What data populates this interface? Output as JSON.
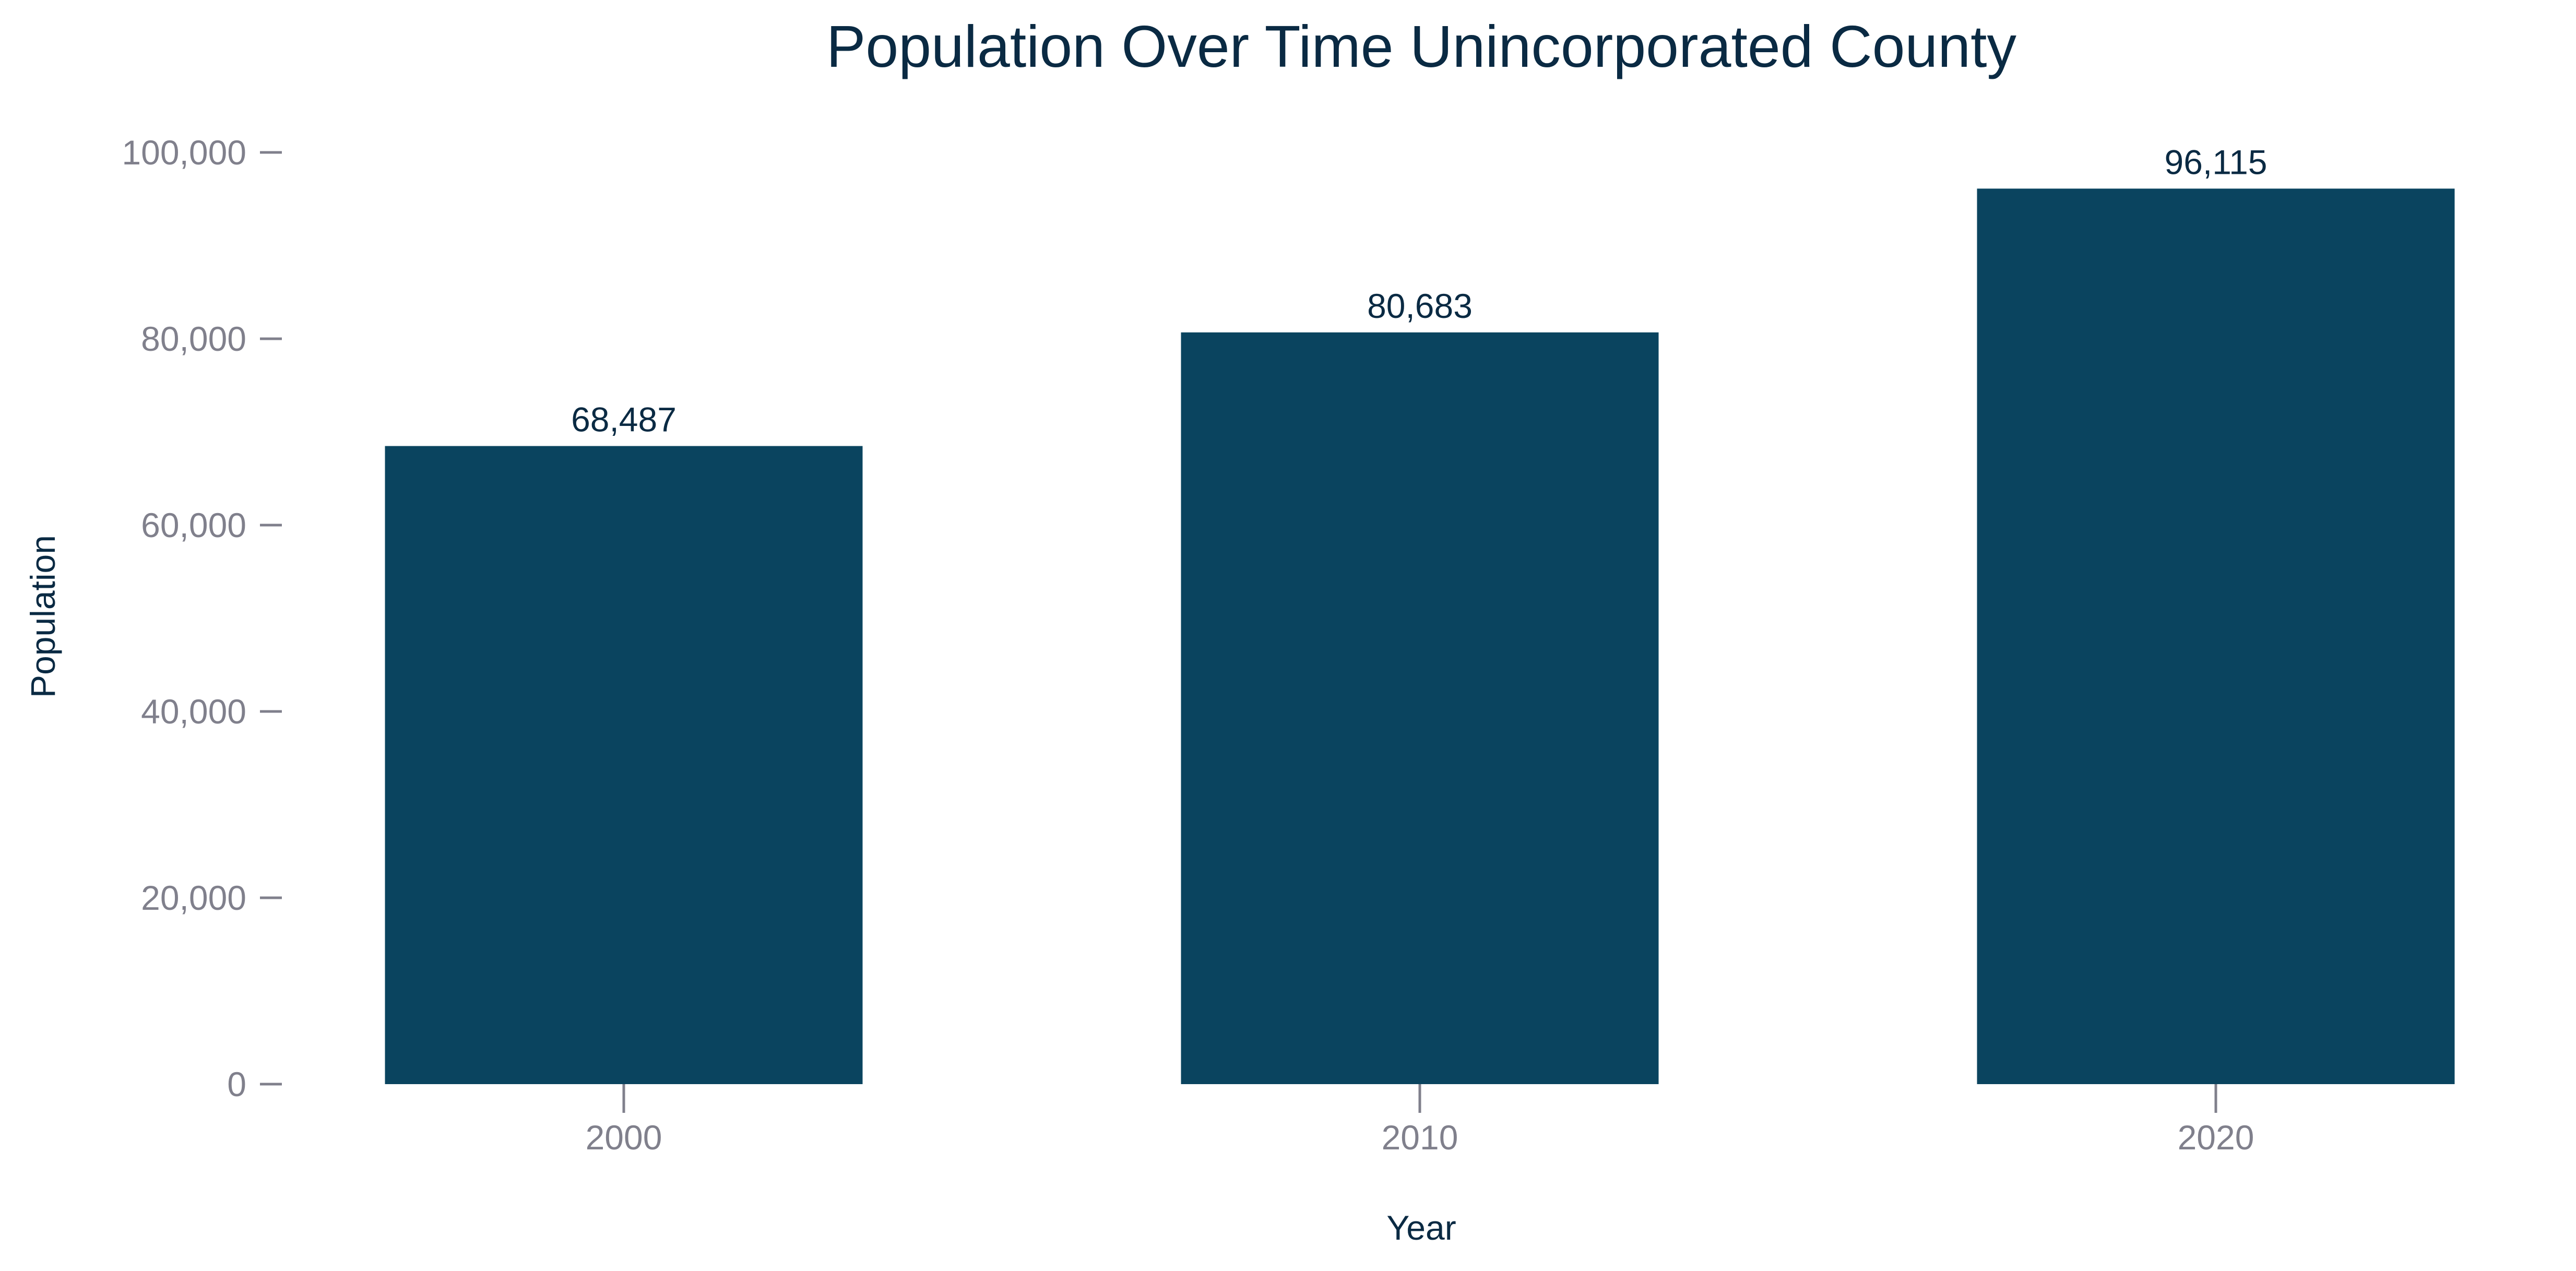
{
  "chart_data": {
    "type": "bar",
    "title": "Population Over Time Unincorporated County",
    "xlabel": "Year",
    "ylabel": "Population",
    "categories": [
      "2000",
      "2010",
      "2020"
    ],
    "values": [
      68487,
      80683,
      96115
    ],
    "value_labels": [
      "68,487",
      "80,683",
      "96,115"
    ],
    "ylim": [
      0,
      100000
    ],
    "yticks": [
      0,
      20000,
      40000,
      60000,
      80000,
      100000
    ],
    "ytick_labels": [
      "0",
      "20,000",
      "40,000",
      "60,000",
      "80,000",
      "100,000"
    ],
    "grid": false,
    "legend": "none",
    "colors": {
      "bar": "#0a445f",
      "title": "#0a2a43",
      "tick_text": "#80808c",
      "axis_title": "#0a2a43",
      "data_label": "#0a2a43"
    }
  }
}
